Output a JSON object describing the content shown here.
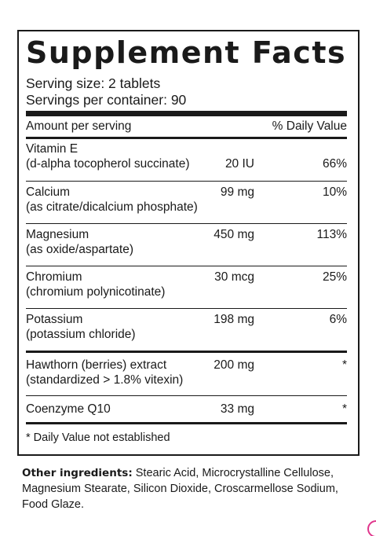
{
  "panel": {
    "title": "Supplement Facts",
    "serving_size": "Serving size: 2 tablets",
    "servings_per_container": "Servings per container: 90",
    "header": {
      "amount": "Amount per serving",
      "daily_value": "% Daily Value"
    },
    "nutrients": [
      {
        "name": "Vitamin E",
        "detail": "(d-alpha tocopherol succinate)",
        "amount": "20 IU",
        "dv": "66%"
      },
      {
        "name": "Calcium",
        "detail": "(as citrate/dicalcium phosphate)",
        "amount": "99 mg",
        "dv": "10%"
      },
      {
        "name": "Magnesium",
        "detail": "(as oxide/aspartate)",
        "amount": "450 mg",
        "dv": "113%"
      },
      {
        "name": "Chromium",
        "detail": "(chromium polynicotinate)",
        "amount": "30 mcg",
        "dv": "25%"
      },
      {
        "name": "Potassium",
        "detail": "(potassium chloride)",
        "amount": "198 mg",
        "dv": "6%"
      },
      {
        "name": "Hawthorn (berries) extract",
        "detail": "(standardized > 1.8% vitexin)",
        "amount": "200 mg",
        "dv": "*"
      },
      {
        "name": "Coenzyme Q10",
        "detail": "",
        "amount": "33 mg",
        "dv": "*"
      }
    ],
    "footnote": "* Daily Value not established"
  },
  "other_ingredients": {
    "label": "Other ingredients:",
    "text": " Stearic Acid, Microcrystalline Cellulose, Magnesium Stearate, Silicon Dioxide, Croscarmellose Sodium, Food Glaze."
  },
  "colors": {
    "text": "#1a1a1a",
    "accent": "#e0368c"
  }
}
